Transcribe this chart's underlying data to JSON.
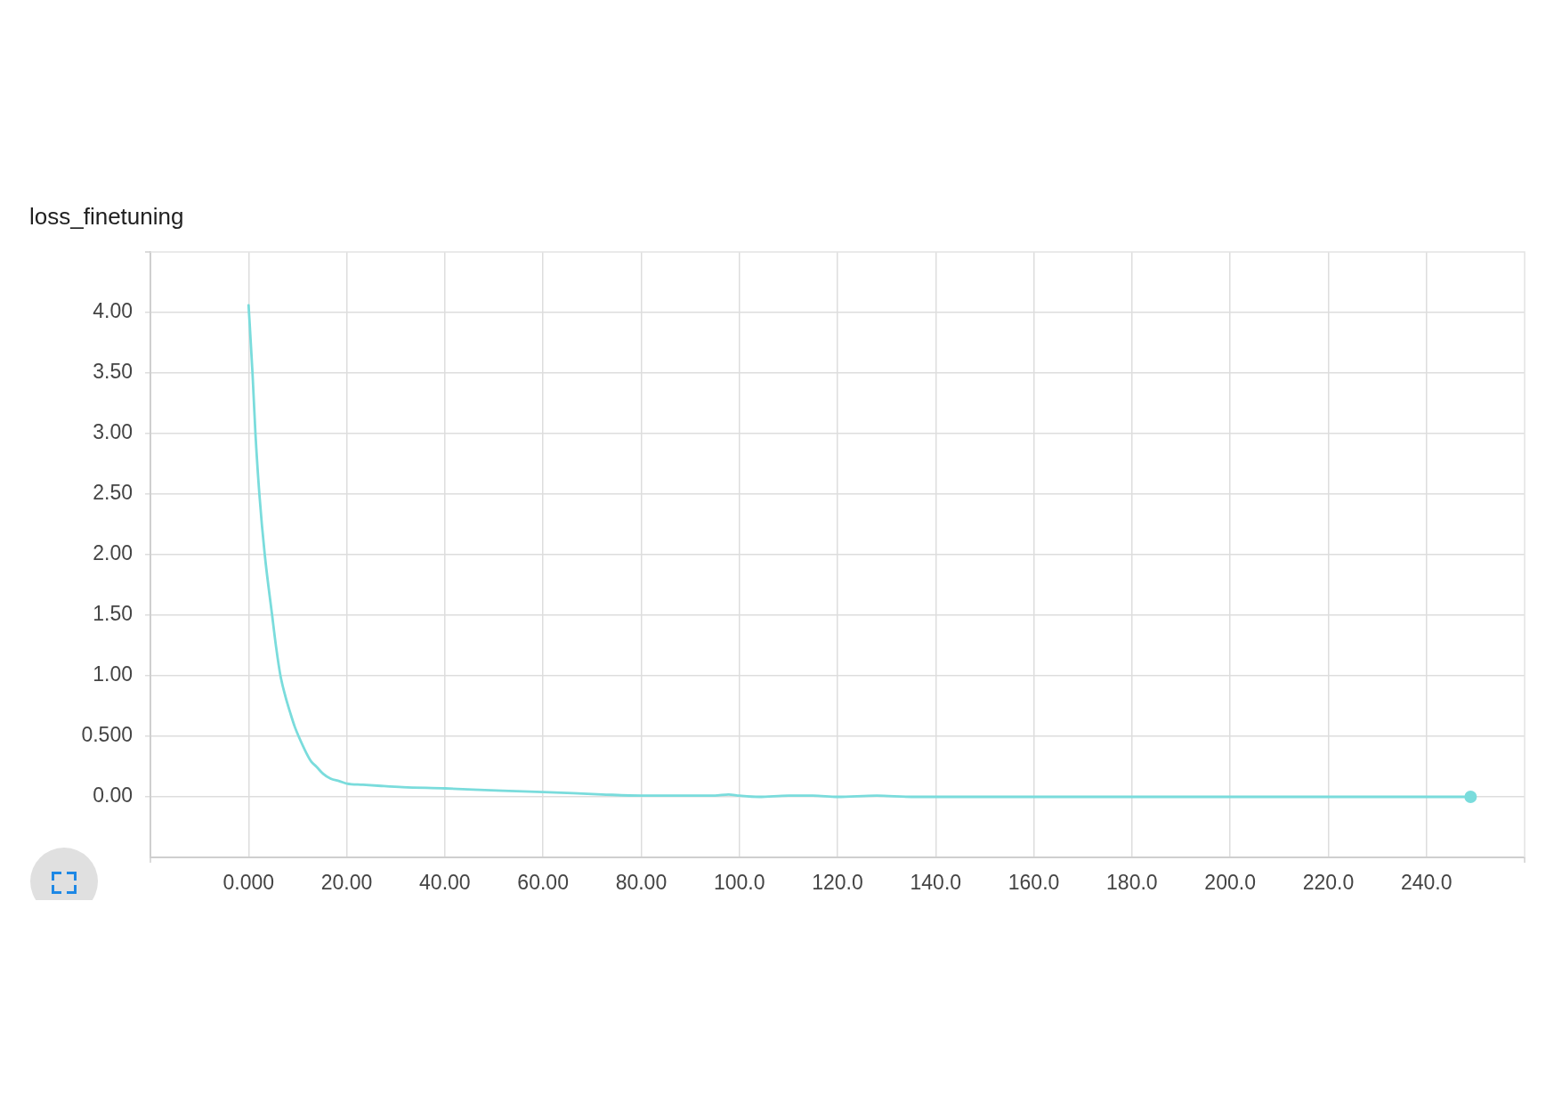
{
  "chart_data": {
    "type": "line",
    "title": "loss_finetuning",
    "xlim": [
      -20,
      260
    ],
    "xticks": [
      {
        "value": 0,
        "label": "0.000"
      },
      {
        "value": 20,
        "label": "20.00"
      },
      {
        "value": 40,
        "label": "40.00"
      },
      {
        "value": 60,
        "label": "60.00"
      },
      {
        "value": 80,
        "label": "80.00"
      },
      {
        "value": 100,
        "label": "100.0"
      },
      {
        "value": 120,
        "label": "120.0"
      },
      {
        "value": 140,
        "label": "140.0"
      },
      {
        "value": 160,
        "label": "160.0"
      },
      {
        "value": 180,
        "label": "180.0"
      },
      {
        "value": 200,
        "label": "200.0"
      },
      {
        "value": 220,
        "label": "220.0"
      },
      {
        "value": 240,
        "label": "240.0"
      }
    ],
    "ylim": [
      -0.5,
      4.5
    ],
    "yticks": [
      {
        "value": 0,
        "label": "0.00"
      },
      {
        "value": 0.5,
        "label": "0.500"
      },
      {
        "value": 1,
        "label": "1.00"
      },
      {
        "value": 1.5,
        "label": "1.50"
      },
      {
        "value": 2,
        "label": "2.00"
      },
      {
        "value": 2.5,
        "label": "2.50"
      },
      {
        "value": 3,
        "label": "3.00"
      },
      {
        "value": 3.5,
        "label": "3.50"
      },
      {
        "value": 4,
        "label": "4.00"
      }
    ],
    "grid": true,
    "marker": "none",
    "line_style": "solid",
    "series": [
      {
        "color": "#7adcdc",
        "x": [
          0,
          0.8,
          1.4,
          2.2,
          3.3,
          4.8,
          5.6,
          6.5,
          7.5,
          8.6,
          9.4,
          10.2,
          11.8,
          12.8,
          13.8,
          15.2,
          16.7,
          18.5,
          20,
          23.3,
          27,
          31.4,
          40,
          51.7,
          60,
          72,
          80,
          90,
          95,
          97.8,
          100,
          104,
          110,
          115,
          120,
          128,
          135,
          140,
          160,
          180,
          200,
          220,
          240,
          249
        ],
        "values": [
          4.06,
          3.5,
          3.0,
          2.5,
          2.0,
          1.5,
          1.24,
          1.0,
          0.83,
          0.68,
          0.58,
          0.5,
          0.36,
          0.29,
          0.25,
          0.19,
          0.15,
          0.13,
          0.11,
          0.1,
          0.09,
          0.08,
          0.07,
          0.05,
          0.04,
          0.02,
          0.01,
          0.01,
          0.01,
          0.02,
          0.01,
          0.0,
          0.01,
          0.01,
          0.0,
          0.01,
          0.0,
          0.0,
          0.0,
          0.0,
          0.0,
          0.0,
          0.0,
          0.0
        ]
      },
      {
        "type": "scatter",
        "color": "#7adcdc",
        "marker": "circle",
        "x": [
          249
        ],
        "values": [
          0.0
        ]
      }
    ]
  }
}
